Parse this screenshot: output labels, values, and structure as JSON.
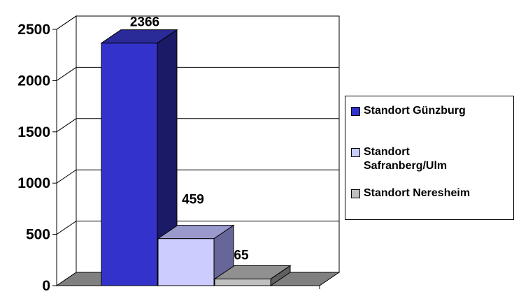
{
  "chart_data": {
    "type": "bar",
    "categories": [
      ""
    ],
    "series": [
      {
        "name": "Standort Günzburg",
        "values": [
          2366
        ],
        "label": "2366",
        "color": "#3333cc"
      },
      {
        "name": "Standort Safranberg/Ulm",
        "values": [
          459
        ],
        "label": "459",
        "color": "#ccccff"
      },
      {
        "name": "Standort Neresheim",
        "values": [
          65
        ],
        "label": "65",
        "color": "#c0c0c0"
      }
    ],
    "y_ticks": [
      "0",
      "500",
      "1000",
      "1500",
      "2000",
      "2500"
    ],
    "ylim": [
      0,
      2500
    ],
    "grid": true,
    "legend": "right",
    "style": "3d-column"
  }
}
